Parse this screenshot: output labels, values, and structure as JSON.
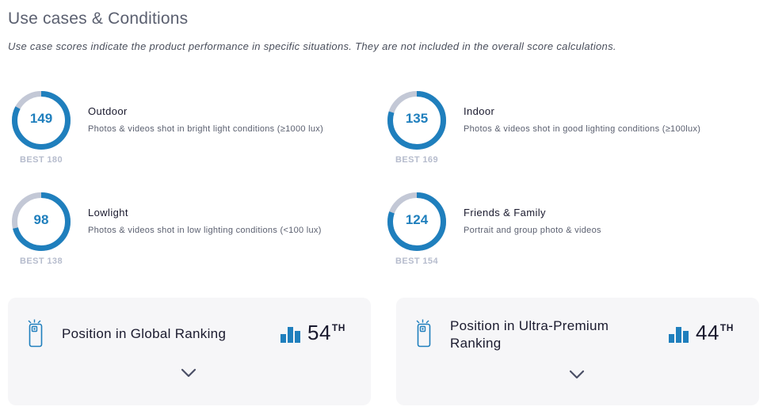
{
  "section": {
    "title": "Use cases & Conditions",
    "description": "Use case scores indicate the product performance in specific situations. They are not included in the overall score calculations."
  },
  "colors": {
    "accent": "#1f7fbd",
    "ring_track": "#c3c8d6",
    "best_text": "#b6bccd",
    "card_bg": "#f6f6f8"
  },
  "use_cases": [
    {
      "name": "Outdoor",
      "score": 149,
      "best": 180,
      "best_label": "BEST 180",
      "description": "Photos & videos shot in bright light conditions (≥1000 lux)"
    },
    {
      "name": "Indoor",
      "score": 135,
      "best": 169,
      "best_label": "BEST 169",
      "description": "Photos & videos shot in good lighting conditions (≥100lux)"
    },
    {
      "name": "Lowlight",
      "score": 98,
      "best": 138,
      "best_label": "BEST 138",
      "description": "Photos & videos shot in low lighting conditions (<100 lux)"
    },
    {
      "name": "Friends & Family",
      "score": 124,
      "best": 154,
      "best_label": "BEST 154",
      "description": "Portrait and group photo & videos"
    }
  ],
  "rankings": [
    {
      "label_line1": "Position in Global Ranking",
      "label_line2": "",
      "position": "54",
      "suffix": "TH",
      "icon": "phone-camera-icon",
      "toggle_icon": "chevron-down-icon"
    },
    {
      "label_line1": "Position in Ultra-Premium",
      "label_line2": "Ranking",
      "position": "44",
      "suffix": "TH",
      "icon": "phone-camera-icon",
      "toggle_icon": "chevron-down-icon"
    }
  ]
}
